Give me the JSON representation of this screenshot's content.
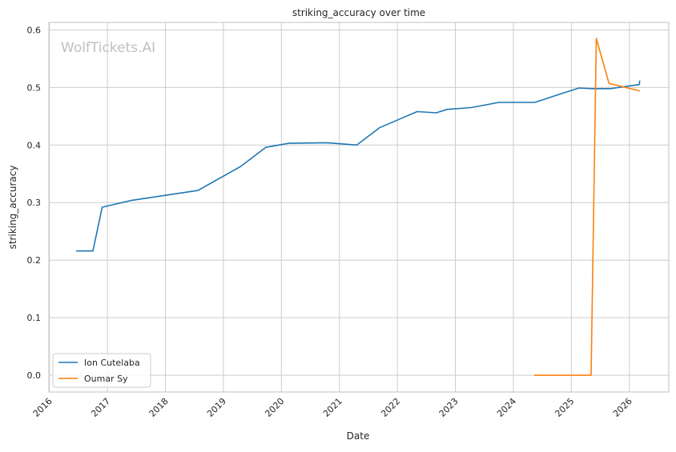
{
  "chart_data": {
    "type": "line",
    "title": "striking_accuracy over time",
    "xlabel": "Date",
    "ylabel": "striking_accuracy",
    "watermark": "WolfTickets.AI",
    "xlim": [
      2015.99,
      2026.68
    ],
    "ylim": [
      -0.029,
      0.613
    ],
    "x_ticks": [
      2016,
      2017,
      2018,
      2019,
      2020,
      2021,
      2022,
      2023,
      2024,
      2025,
      2026
    ],
    "x_tick_labels": [
      "2016",
      "2017",
      "2018",
      "2019",
      "2020",
      "2021",
      "2022",
      "2023",
      "2024",
      "2025",
      "2026"
    ],
    "y_ticks": [
      0.0,
      0.1,
      0.2,
      0.3,
      0.4,
      0.5,
      0.6
    ],
    "y_tick_labels": [
      "0.0",
      "0.1",
      "0.2",
      "0.3",
      "0.4",
      "0.5",
      "0.6"
    ],
    "grid": true,
    "legend_position": "bottom-left",
    "series": [
      {
        "name": "Ion Cutelaba",
        "color": "#1f77b4",
        "x": [
          2016.46,
          2016.75,
          2016.91,
          2017.42,
          2018.56,
          2019.3,
          2019.73,
          2020.13,
          2020.79,
          2021.3,
          2021.69,
          2022.34,
          2022.67,
          2022.86,
          2023.27,
          2023.75,
          2024.37,
          2024.73,
          2025.13,
          2025.36,
          2025.67,
          2026.17,
          2026.18
        ],
        "y": [
          0.216,
          0.216,
          0.292,
          0.304,
          0.321,
          0.363,
          0.396,
          0.403,
          0.404,
          0.4,
          0.43,
          0.458,
          0.456,
          0.462,
          0.465,
          0.474,
          0.474,
          0.486,
          0.499,
          0.498,
          0.498,
          0.505,
          0.512
        ]
      },
      {
        "name": "Oumar Sy",
        "color": "#ff7f0e",
        "x": [
          2024.36,
          2025.34,
          2025.43,
          2025.65,
          2026.18
        ],
        "y": [
          0.0,
          0.0,
          0.585,
          0.507,
          0.494
        ]
      }
    ]
  }
}
